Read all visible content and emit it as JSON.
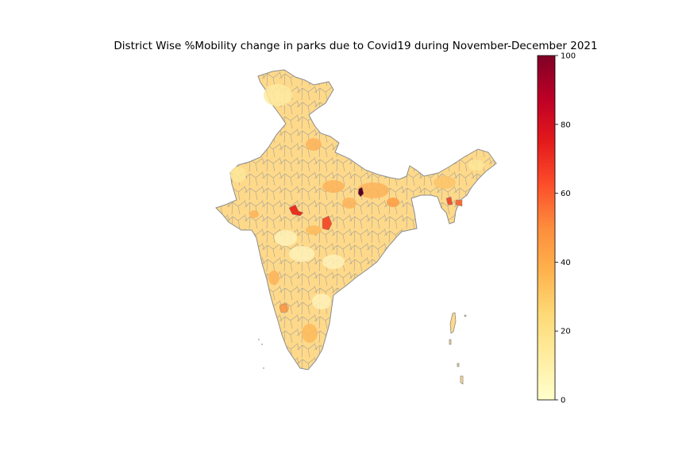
{
  "title": "District Wise %Mobility change in parks due to Covid19 during November-December 2021",
  "colorbar": {
    "min": 0,
    "max": 100,
    "ticks": [
      "0",
      "20",
      "40",
      "60",
      "80",
      "100"
    ],
    "colormap": "YlOrRd",
    "stops": [
      "#ffffcc",
      "#ffeda0",
      "#fed976",
      "#feb24c",
      "#fd8d3c",
      "#fc4e2a",
      "#e31a1c",
      "#bd0026",
      "#800026"
    ]
  },
  "map": {
    "region": "India districts",
    "base_fill": "#fed98a",
    "border_color": "#8c8c8c",
    "hotspots": [
      {
        "name": "hotspot-central-west",
        "value": 65
      },
      {
        "name": "hotspot-central",
        "value": 58
      },
      {
        "name": "hotspot-north-dark",
        "value": 100
      },
      {
        "name": "hotspot-northeast",
        "value": 60
      }
    ]
  }
}
